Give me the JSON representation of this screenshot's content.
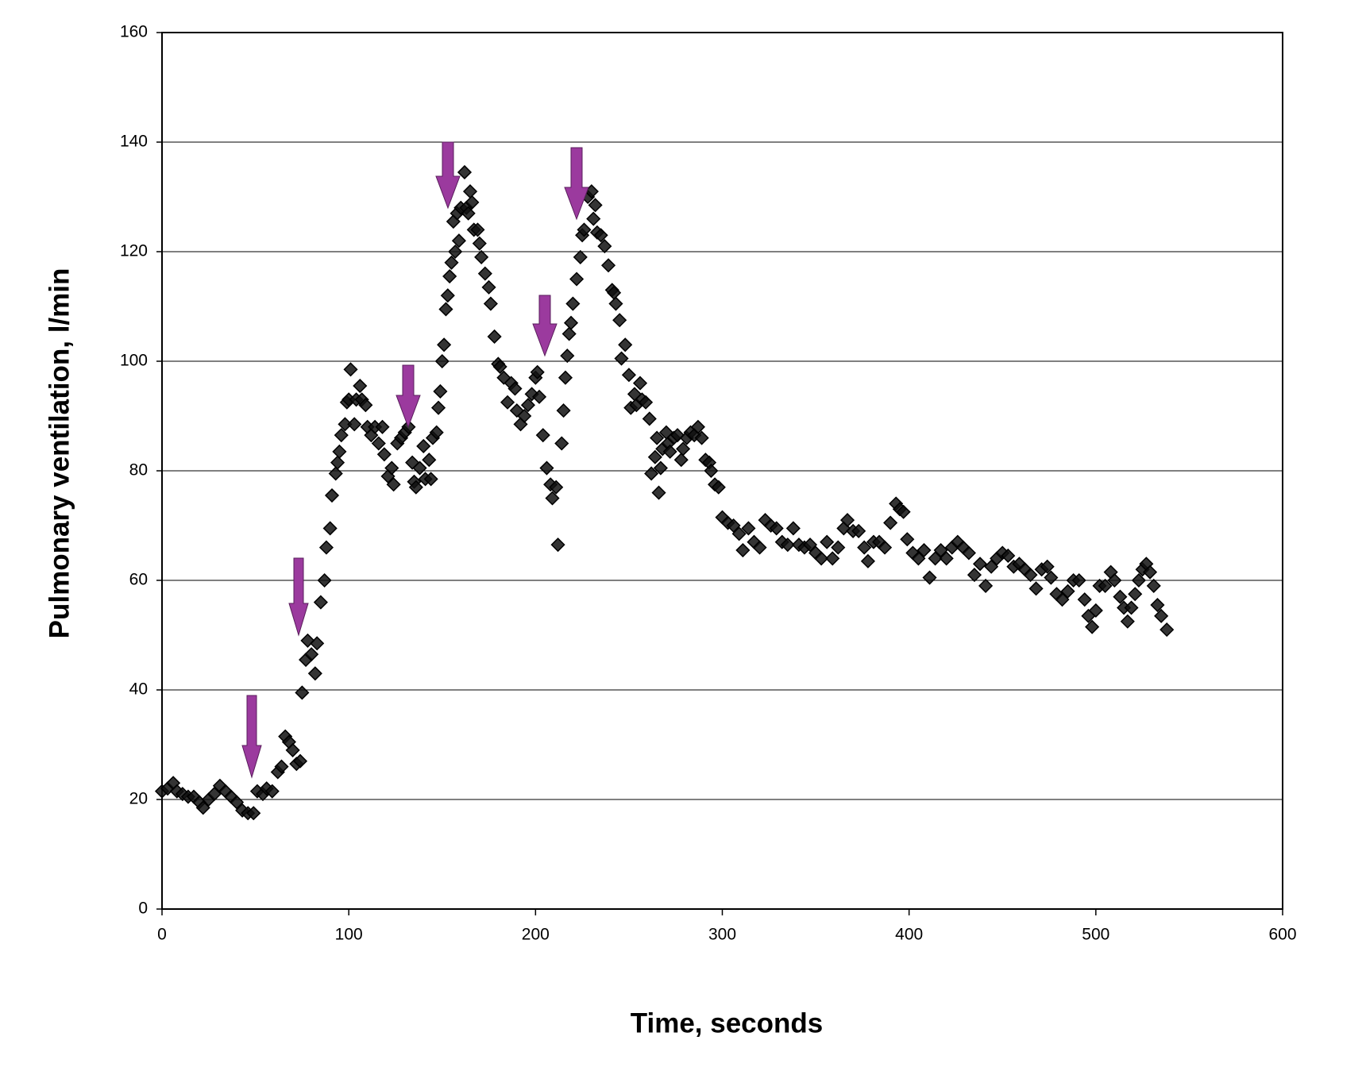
{
  "chart_data": {
    "type": "scatter",
    "x_label": "Time, seconds",
    "y_label": "Pulmonary ventilation, l/min",
    "xlim": [
      0,
      600
    ],
    "xticks": [
      0,
      100,
      200,
      300,
      400,
      500,
      600
    ],
    "ylim": [
      0,
      160
    ],
    "yticks": [
      0,
      20,
      40,
      60,
      80,
      100,
      120,
      140,
      160
    ],
    "grid": true,
    "color": "#111111",
    "x": [
      0,
      3,
      6,
      8,
      11,
      14,
      17,
      20,
      22,
      25,
      28,
      31,
      34,
      37,
      40,
      43,
      46,
      49,
      51,
      54,
      56,
      59,
      62,
      64,
      66,
      68,
      70,
      72,
      74,
      75,
      77,
      78,
      80,
      82,
      83,
      85,
      87,
      88,
      90,
      91,
      93,
      94,
      95,
      96,
      98,
      99,
      100,
      101,
      103,
      104,
      106,
      107,
      109,
      110,
      112,
      114,
      116,
      118,
      119,
      121,
      123,
      124,
      126,
      128,
      130,
      132,
      134,
      135,
      136,
      138,
      140,
      141,
      143,
      144,
      145,
      147,
      148,
      149,
      150,
      151,
      152,
      153,
      154,
      155,
      156,
      157,
      158,
      159,
      160,
      162,
      163,
      164,
      165,
      166,
      167,
      169,
      170,
      171,
      173,
      175,
      176,
      178,
      180,
      181,
      183,
      185,
      187,
      189,
      190,
      192,
      194,
      196,
      198,
      200,
      201,
      202,
      204,
      206,
      208,
      209,
      211,
      212,
      214,
      215,
      216,
      217,
      218,
      219,
      220,
      222,
      224,
      225,
      226,
      228,
      230,
      231,
      232,
      233,
      235,
      237,
      239,
      241,
      242,
      243,
      245,
      246,
      248,
      250,
      251,
      253,
      254,
      256,
      257,
      259,
      261,
      262,
      264,
      265,
      266,
      267,
      268,
      270,
      271,
      272,
      274,
      276,
      278,
      279,
      281,
      283,
      285,
      287,
      289,
      291,
      293,
      294,
      296,
      298,
      300,
      303,
      306,
      309,
      311,
      314,
      317,
      320,
      323,
      326,
      329,
      332,
      335,
      338,
      341,
      344,
      347,
      350,
      353,
      356,
      359,
      362,
      365,
      367,
      370,
      373,
      376,
      378,
      381,
      384,
      387,
      390,
      393,
      395,
      397,
      399,
      402,
      405,
      408,
      411,
      414,
      417,
      420,
      423,
      426,
      429,
      432,
      435,
      438,
      441,
      444,
      447,
      450,
      453,
      456,
      459,
      462,
      465,
      468,
      471,
      474,
      476,
      479,
      482,
      485,
      488,
      491,
      494,
      496,
      498,
      500,
      502,
      505,
      508,
      510,
      513,
      515,
      517,
      519,
      521,
      523,
      525,
      527,
      529,
      531,
      533,
      535,
      538
    ],
    "values": [
      21.5,
      22,
      23,
      21.5,
      21,
      20.5,
      20.5,
      19.5,
      18.5,
      20,
      21,
      22.5,
      21.5,
      20.5,
      19.5,
      18,
      17.5,
      17.5,
      21.5,
      21,
      22,
      21.5,
      25,
      26,
      31.5,
      30.5,
      29,
      26.5,
      27,
      39.5,
      45.5,
      49,
      46.5,
      43,
      48.5,
      56,
      60,
      66,
      69.5,
      75.5,
      79.5,
      81.5,
      83.5,
      86.5,
      88.5,
      92.5,
      93,
      98.5,
      88.5,
      93,
      95.5,
      93,
      92,
      88,
      86.5,
      88,
      85,
      88,
      83,
      79,
      80.5,
      77.5,
      85,
      86,
      87,
      88,
      81.5,
      78,
      77,
      80.5,
      84.5,
      78.5,
      82,
      78.5,
      86,
      87,
      91.5,
      94.5,
      100,
      103,
      109.5,
      112,
      115.5,
      118,
      125.5,
      120,
      127,
      122,
      128,
      134.5,
      128,
      127,
      131,
      129,
      124,
      124,
      121.5,
      119,
      116,
      113.5,
      110.5,
      104.5,
      99.5,
      99,
      97,
      92.5,
      96,
      95,
      91,
      88.5,
      90,
      92,
      94,
      97,
      98,
      93.5,
      86.5,
      80.5,
      77.5,
      75,
      77,
      66.5,
      85,
      91,
      97,
      101,
      105,
      107,
      110.5,
      115,
      119,
      123,
      124,
      130,
      131,
      126,
      128.5,
      123.5,
      123,
      121,
      117.5,
      113,
      112.5,
      110.5,
      107.5,
      100.5,
      103,
      97.5,
      91.5,
      94,
      92,
      96,
      93,
      92.5,
      89.5,
      79.5,
      82.5,
      86,
      76,
      80.5,
      84,
      87,
      85,
      83.5,
      86,
      86.5,
      82,
      84,
      86,
      87,
      86.5,
      88,
      86,
      82,
      81.5,
      80,
      77.5,
      77,
      71.5,
      70.5,
      70,
      68.5,
      65.5,
      69.5,
      67,
      66,
      71,
      70,
      69.5,
      67,
      66.5,
      69.5,
      66.5,
      66,
      66.5,
      65,
      64,
      67,
      64,
      66,
      69.5,
      71,
      69,
      69,
      66,
      63.5,
      67,
      67,
      66,
      70.5,
      74,
      73,
      72.5,
      67.5,
      65,
      64,
      65.5,
      60.5,
      64,
      65.5,
      64,
      66,
      67,
      66,
      65,
      61,
      63,
      59,
      62.5,
      64,
      65,
      64.5,
      62.5,
      63,
      62,
      61,
      58.5,
      62,
      62.5,
      60.5,
      57.5,
      56.5,
      58,
      60,
      60,
      56.5,
      53.5,
      51.5,
      54.5,
      59,
      59,
      61.5,
      60,
      57,
      55,
      52.5,
      55,
      57.5,
      60,
      62,
      63,
      61.5,
      59,
      55.5,
      53.5,
      51
    ]
  }
}
